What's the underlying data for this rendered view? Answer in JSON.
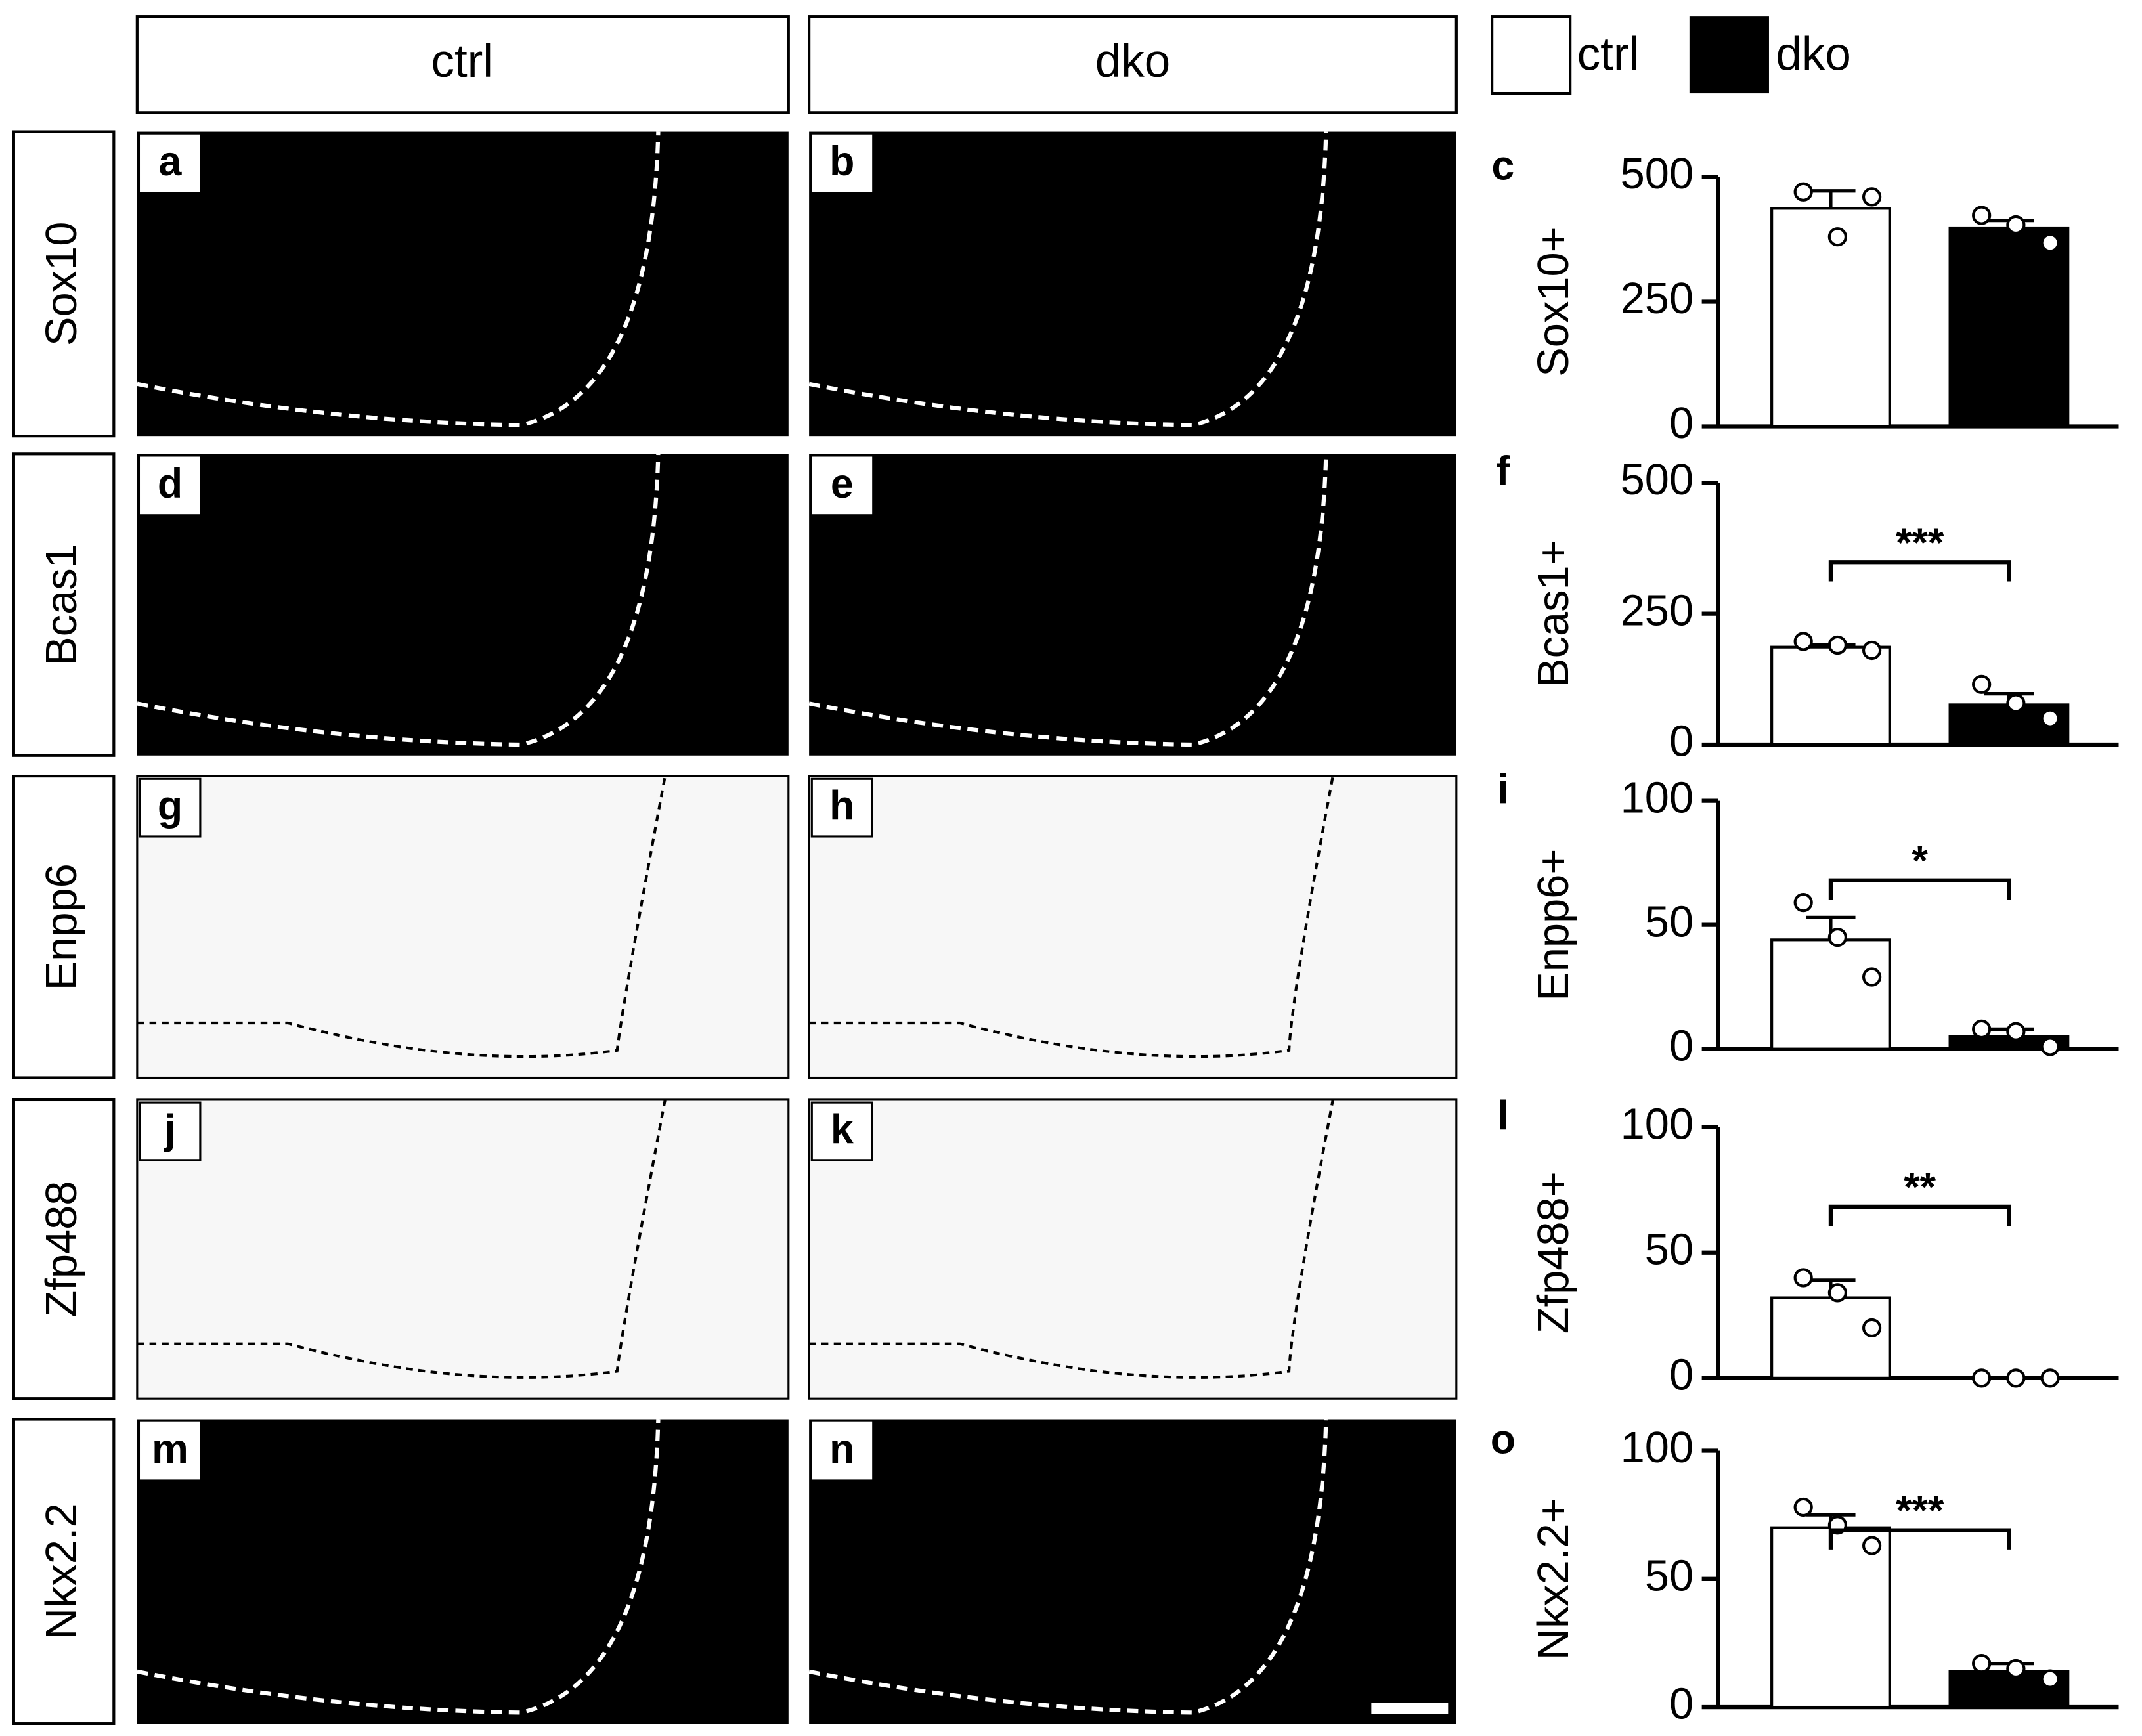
{
  "columns": [
    "ctrl",
    "dko"
  ],
  "rows": [
    {
      "label": "Sox10",
      "panels": [
        "a",
        "b"
      ]
    },
    {
      "label": "Bcas1",
      "panels": [
        "d",
        "e"
      ]
    },
    {
      "label": "Enpp6",
      "panels": [
        "g",
        "h"
      ]
    },
    {
      "label": "Zfp488",
      "panels": [
        "j",
        "k"
      ]
    },
    {
      "label": "Nkx2.2",
      "panels": [
        "m",
        "n"
      ]
    }
  ],
  "chart_data": [
    {
      "type": "bar",
      "panel": "c",
      "ylabel": "Sox10+",
      "ylim": [
        0,
        500
      ],
      "yticks": [
        0,
        250,
        500
      ],
      "series": [
        {
          "name": "ctrl",
          "color": "#ffffff",
          "values": [
            437
          ],
          "errors": [
            35
          ],
          "points": [
            470,
            380,
            460
          ]
        },
        {
          "name": "dko",
          "color": "#000000",
          "values": [
            398
          ],
          "errors": [
            15
          ],
          "points": [
            423,
            404,
            368
          ]
        }
      ]
    },
    {
      "type": "bar",
      "panel": "f",
      "ylabel": "Bcas1+",
      "ylim": [
        0,
        500
      ],
      "yticks": [
        0,
        250,
        500
      ],
      "significance": "***",
      "series": [
        {
          "name": "ctrl",
          "color": "#ffffff",
          "values": [
            186
          ],
          "errors": [
            5
          ],
          "points": [
            197,
            190,
            180
          ]
        },
        {
          "name": "dko",
          "color": "#000000",
          "values": [
            76
          ],
          "errors": [
            21
          ],
          "points": [
            115,
            79,
            50
          ]
        }
      ]
    },
    {
      "type": "bar",
      "panel": "i",
      "ylabel": "Enpp6+",
      "ylim": [
        0,
        100
      ],
      "yticks": [
        0,
        50,
        100
      ],
      "significance": "*",
      "series": [
        {
          "name": "ctrl",
          "color": "#ffffff",
          "values": [
            44
          ],
          "errors": [
            9
          ],
          "points": [
            59,
            45,
            29
          ]
        },
        {
          "name": "dko",
          "color": "#000000",
          "values": [
            5
          ],
          "errors": [
            3
          ],
          "points": [
            8,
            7,
            1
          ]
        }
      ]
    },
    {
      "type": "bar",
      "panel": "l",
      "ylabel": "Zfp488+",
      "ylim": [
        0,
        100
      ],
      "yticks": [
        0,
        50,
        100
      ],
      "significance": "**",
      "series": [
        {
          "name": "ctrl",
          "color": "#ffffff",
          "values": [
            32
          ],
          "errors": [
            7
          ],
          "points": [
            40,
            34,
            20
          ]
        },
        {
          "name": "dko",
          "color": "#000000",
          "values": [
            0
          ],
          "errors": [
            0
          ],
          "points": [
            0,
            0,
            0
          ]
        }
      ]
    },
    {
      "type": "bar",
      "panel": "o",
      "ylabel": "Nkx2.2+",
      "ylim": [
        0,
        100
      ],
      "yticks": [
        0,
        50,
        100
      ],
      "significance": "***",
      "series": [
        {
          "name": "ctrl",
          "color": "#ffffff",
          "values": [
            70
          ],
          "errors": [
            5
          ],
          "points": [
            78,
            71,
            63
          ]
        },
        {
          "name": "dko",
          "color": "#000000",
          "values": [
            14
          ],
          "errors": [
            3
          ],
          "points": [
            17,
            15,
            11
          ]
        }
      ]
    }
  ]
}
